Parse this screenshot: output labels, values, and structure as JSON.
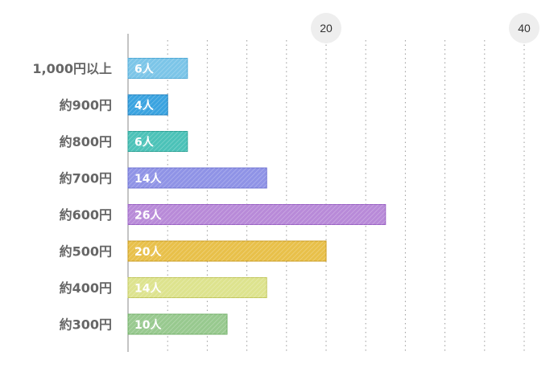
{
  "chart_data": {
    "type": "bar",
    "orientation": "horizontal",
    "categories": [
      "1,000円以上",
      "約900円",
      "約800円",
      "約700円",
      "約600円",
      "約500円",
      "約400円",
      "約300円"
    ],
    "values": [
      6,
      4,
      6,
      14,
      26,
      20,
      14,
      10
    ],
    "value_labels": [
      "6人",
      "4人",
      "6人",
      "14人",
      "26人",
      "20人",
      "14人",
      "10人"
    ],
    "bar_colors": [
      "#7cc5e8",
      "#3aa3e0",
      "#4cc2b8",
      "#8f93e6",
      "#b88ad8",
      "#e8c04a",
      "#dde38e",
      "#98c98f"
    ],
    "bar_border_colors": [
      "#4fa9d6",
      "#1f7fbd",
      "#2fa397",
      "#6b6fd0",
      "#9a62c4",
      "#c99a1e",
      "#c2c75e",
      "#6fae66"
    ],
    "xlim": [
      0,
      40
    ],
    "major_ticks": [
      "20",
      "40"
    ],
    "grid": "dotted vertical every 4 units",
    "title": "",
    "xlabel": "",
    "ylabel": ""
  }
}
